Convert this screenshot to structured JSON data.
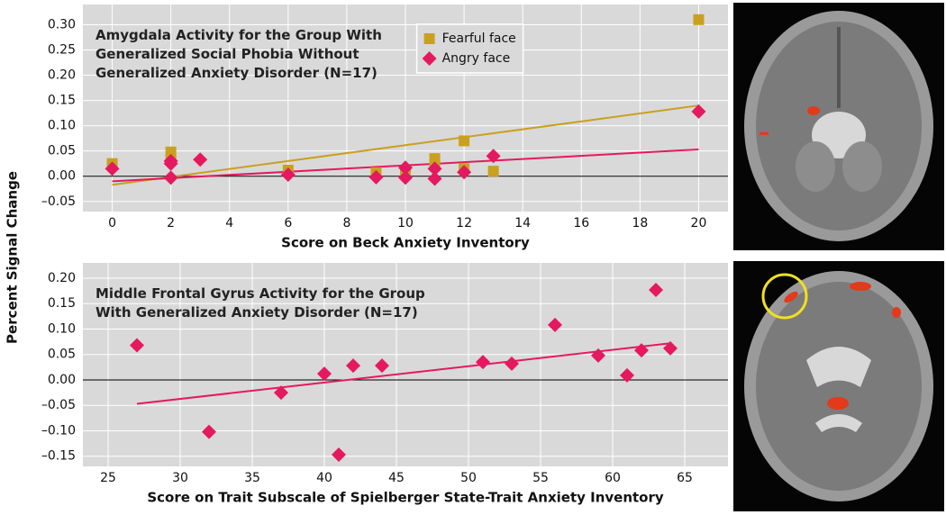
{
  "ylabel": "Percent Signal Change",
  "chart_data": [
    {
      "type": "scatter",
      "title": [
        "Amygdala Activity for the Group With",
        "Generalized Social Phobia Without",
        "Generalized Anxiety Disorder (N=17)"
      ],
      "xlabel": "Score on Beck Anxiety Inventory",
      "xlim": [
        -1,
        21
      ],
      "ylim": [
        -0.07,
        0.34
      ],
      "xticks": [
        0,
        2,
        4,
        6,
        8,
        10,
        12,
        14,
        16,
        18,
        20
      ],
      "yticks": [
        {
          "value": -0.05,
          "label": "–0.05"
        },
        {
          "value": 0,
          "label": "0.00"
        },
        {
          "value": 0.05,
          "label": "0.05"
        },
        {
          "value": 0.1,
          "label": "0.10"
        },
        {
          "value": 0.15,
          "label": "0.15"
        },
        {
          "value": 0.2,
          "label": "0.20"
        },
        {
          "value": 0.25,
          "label": "0.25"
        },
        {
          "value": 0.3,
          "label": "0.30"
        }
      ],
      "grid": true,
      "zero_line": true,
      "legend": "upper center",
      "series": [
        {
          "name": "Fearful face",
          "color": "#c9a020",
          "marker": "square",
          "x": [
            0,
            2,
            2,
            6,
            9,
            10,
            11,
            11,
            12,
            12,
            13,
            20
          ],
          "values": [
            0.025,
            0.048,
            0.035,
            0.012,
            0.007,
            0.01,
            0.035,
            0.02,
            0.07,
            0.015,
            0.01,
            0.31
          ],
          "trend": {
            "x": [
              0,
              20
            ],
            "y": [
              -0.017,
              0.14
            ]
          }
        },
        {
          "name": "Angry face",
          "color": "#e5195f",
          "marker": "diamond",
          "x": [
            0,
            2,
            2,
            2,
            3,
            6,
            9,
            10,
            10,
            11,
            11,
            12,
            13,
            20
          ],
          "values": [
            0.015,
            0.03,
            0.025,
            -0.003,
            0.033,
            0.003,
            -0.002,
            0.017,
            -0.003,
            0.015,
            -0.005,
            0.008,
            0.04,
            0.128
          ],
          "trend": {
            "x": [
              0,
              20
            ],
            "y": [
              -0.01,
              0.053
            ]
          }
        }
      ]
    },
    {
      "type": "scatter",
      "title": [
        "Middle Frontal Gyrus Activity for the Group",
        "With Generalized Anxiety Disorder (N=17)"
      ],
      "xlabel": "Score on Trait Subscale of Spielberger State-Trait Anxiety Inventory",
      "xlim": [
        23.25,
        68
      ],
      "ylim": [
        -0.17,
        0.23
      ],
      "xticks": [
        25,
        30,
        35,
        40,
        45,
        50,
        55,
        60,
        65
      ],
      "yticks": [
        {
          "value": -0.15,
          "label": "–0.15"
        },
        {
          "value": -0.1,
          "label": "–0.10"
        },
        {
          "value": -0.05,
          "label": "–0.05"
        },
        {
          "value": 0,
          "label": "0.00"
        },
        {
          "value": 0.05,
          "label": "0.05"
        },
        {
          "value": 0.1,
          "label": "0.10"
        },
        {
          "value": 0.15,
          "label": "0.15"
        },
        {
          "value": 0.2,
          "label": "0.20"
        }
      ],
      "grid": true,
      "zero_line": true,
      "series": [
        {
          "color": "#e5195f",
          "marker": "diamond",
          "x": [
            27,
            32,
            37,
            40,
            41,
            42,
            44,
            51,
            53,
            56,
            59,
            61,
            62,
            63,
            64
          ],
          "values": [
            0.068,
            -0.102,
            -0.025,
            0.012,
            -0.147,
            0.028,
            0.028,
            0.035,
            0.032,
            0.108,
            0.048,
            0.009,
            0.058,
            0.177,
            0.062
          ],
          "trend": {
            "x": [
              27,
              64
            ],
            "y": [
              -0.047,
              0.072
            ]
          }
        }
      ]
    }
  ]
}
